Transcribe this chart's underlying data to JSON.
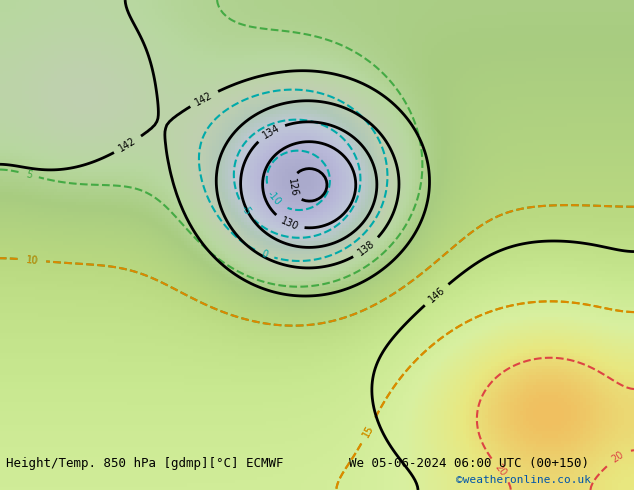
{
  "title_left": "Height/Temp. 850 hPa [gdmp][°C] ECMWF",
  "title_right": "We 05-06-2024 06:00 UTC (00+150)",
  "credit": "©weatheronline.co.uk",
  "background_color": "#f0f0f0",
  "fig_width": 6.34,
  "fig_height": 4.9,
  "dpi": 100,
  "title_fontsize": 9,
  "credit_fontsize": 8,
  "credit_color": "#0055aa"
}
